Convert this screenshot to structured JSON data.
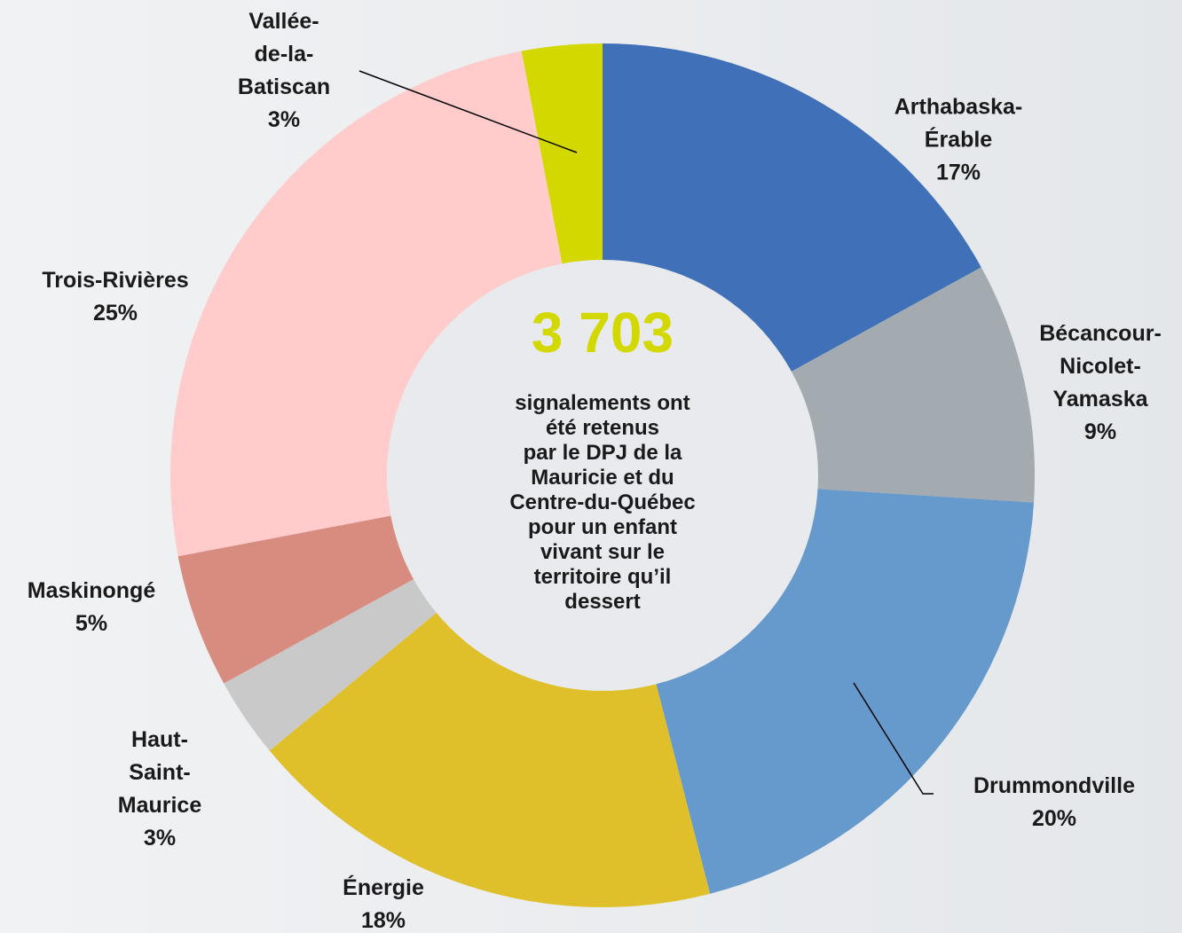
{
  "chart_data": {
    "type": "donut",
    "center_value": "3 703",
    "center_text": "signalements ont\nété retenus\npar le DPJ de la\nMauricie et du\nCentre-du-Québec\npour un enfant\nvivant sur le\nterritoire qu’il\ndessert",
    "categories": [
      "Arthabaska-\nÉrable",
      "Bécancour-\nNicolet-\nYamaska",
      "Drummondville",
      "Énergie",
      "Haut-\nSaint-\nMaurice",
      "Maskinongé",
      "Trois-Rivières",
      "Vallée-\nde-la-\nBatiscan"
    ],
    "values": [
      17,
      9,
      20,
      18,
      3,
      5,
      25,
      3
    ],
    "value_labels": [
      "17%",
      "9%",
      "20%",
      "18%",
      "3%",
      "5%",
      "25%",
      "3%"
    ],
    "colors": [
      "#4070b8",
      "#a4abb0",
      "#6699cc",
      "#e0c02a",
      "#c9c9c9",
      "#d88c80",
      "#ffcbcb",
      "#d2d800"
    ],
    "center_color": "#d2d800"
  }
}
